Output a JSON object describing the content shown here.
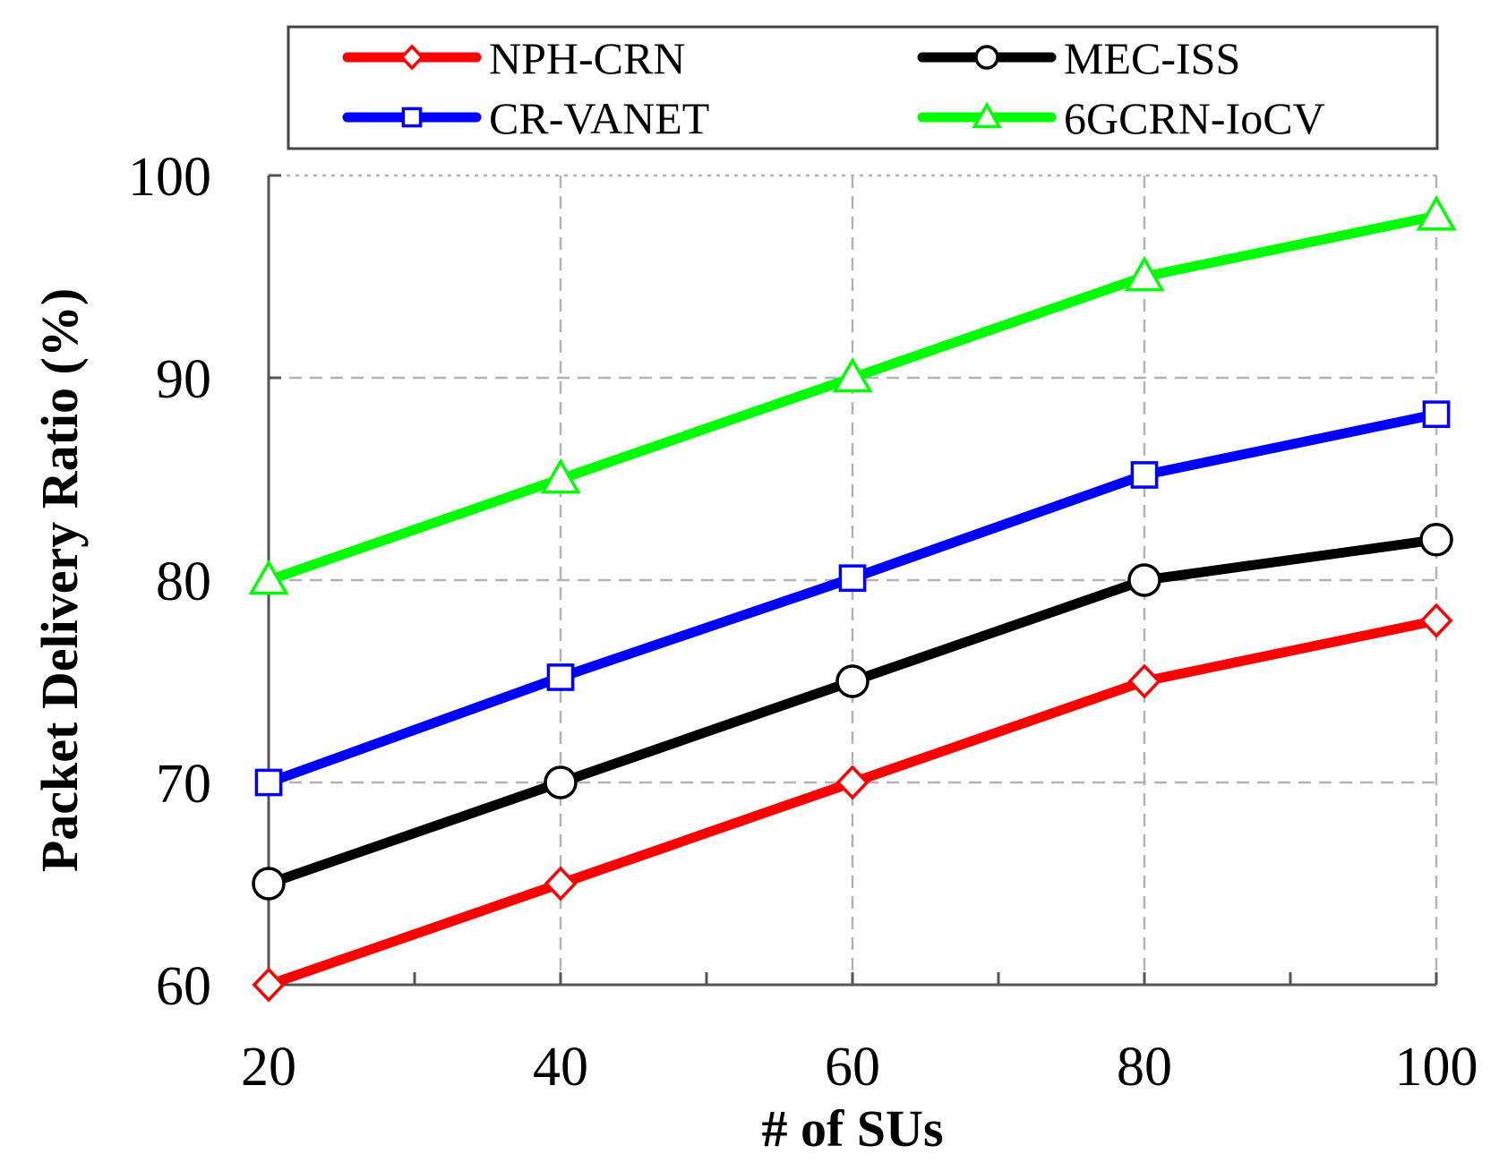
{
  "chart_data": {
    "type": "line",
    "title": "",
    "xlabel": "# of SUs",
    "ylabel": "Packet Delivery Ratio (%)",
    "x": [
      20,
      40,
      60,
      80,
      100
    ],
    "xticks": [
      "20",
      "40",
      "60",
      "80",
      "100"
    ],
    "yticks": [
      "60",
      "70",
      "80",
      "90",
      "100"
    ],
    "xlim": [
      20,
      100
    ],
    "ylim": [
      60,
      100
    ],
    "grid": true,
    "legend": "top, outside plot, 2 columns",
    "series": [
      {
        "name": "NPH-CRN",
        "color": "#ff0000",
        "marker": "diamond",
        "values": [
          60,
          65,
          70,
          75,
          78
        ]
      },
      {
        "name": "MEC-ISS",
        "color": "#000000",
        "marker": "circle",
        "values": [
          65,
          70,
          75,
          80,
          82
        ]
      },
      {
        "name": "CR-VANET",
        "color": "#0000ff",
        "marker": "square",
        "values": [
          70,
          75.2,
          80.1,
          85.2,
          88.2
        ]
      },
      {
        "name": "6GCRN-IoCV",
        "color": "#00ff00",
        "marker": "triangle",
        "values": [
          80,
          85,
          90,
          95,
          98
        ]
      }
    ]
  }
}
